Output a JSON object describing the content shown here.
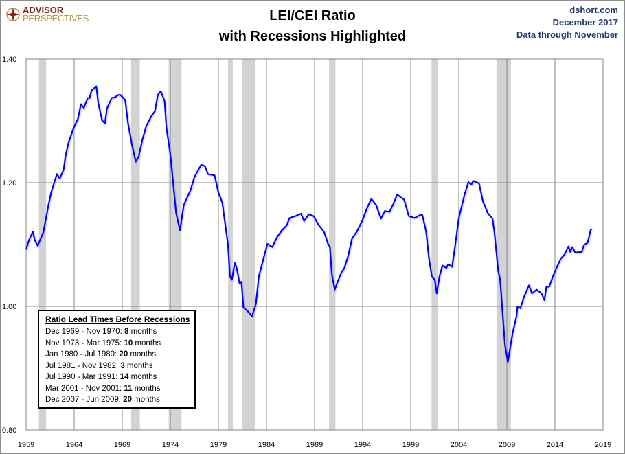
{
  "header": {
    "logo_line1": "ADVISOR",
    "logo_line2": "PERSPECTIVES",
    "title_line1": "LEI/CEI Ratio",
    "title_line2": "with Recessions Highlighted",
    "source": "dshort.com",
    "date": "December 2017",
    "data_through": "Data through November"
  },
  "legend_box": {
    "title": "Ratio Lead Times Before Recessions",
    "items": [
      {
        "range": "Dec 1969 - Nov 1970: ",
        "value": "8",
        "unit": " months"
      },
      {
        "range": "Nov 1973 - Mar 1975: ",
        "value": "10",
        "unit": " months"
      },
      {
        "range": "Jan 1980 - Jul 1980: ",
        "value": "20",
        "unit": " months"
      },
      {
        "range": "Jul 1981 - Nov 1982: ",
        "value": "3",
        "unit": " months"
      },
      {
        "range": "Jul 1990 - Mar 1991: ",
        "value": "14",
        "unit": " months"
      },
      {
        "range": "Mar 2001 - Nov 2001: ",
        "value": "11",
        "unit": " months"
      },
      {
        "range": "Dec 2007 - Jun 2009: ",
        "value": "20",
        "unit": " months"
      }
    ]
  },
  "chart_data": {
    "type": "line",
    "title": "LEI/CEI Ratio with Recessions Highlighted",
    "xlim": [
      1959,
      2019
    ],
    "ylim": [
      0.8,
      1.4
    ],
    "xticks": [
      "1959",
      "1964",
      "1969",
      "1974",
      "1979",
      "1984",
      "1989",
      "1994",
      "1999",
      "2004",
      "2009",
      "2014",
      "2019"
    ],
    "yticks": [
      "0.80",
      "1.00",
      "1.20",
      "1.40"
    ],
    "grid": true,
    "line_color": "#0000ff",
    "recession_color": "#d3d3d3",
    "recessions": [
      [
        1960.33,
        1961.08
      ],
      [
        1969.92,
        1970.83
      ],
      [
        1973.83,
        1975.17
      ],
      [
        1980.0,
        1980.5
      ],
      [
        1981.5,
        1982.83
      ],
      [
        1990.5,
        1991.17
      ],
      [
        2001.17,
        2001.83
      ],
      [
        2007.92,
        2009.42
      ]
    ],
    "series": [
      {
        "points": [
          [
            1959.0,
            1.092
          ],
          [
            1959.3,
            1.107
          ],
          [
            1959.7,
            1.121
          ],
          [
            1959.9,
            1.107
          ],
          [
            1960.2,
            1.098
          ],
          [
            1960.8,
            1.12
          ],
          [
            1961.3,
            1.162
          ],
          [
            1961.6,
            1.184
          ],
          [
            1962.0,
            1.204
          ],
          [
            1962.2,
            1.214
          ],
          [
            1962.5,
            1.207
          ],
          [
            1962.9,
            1.221
          ],
          [
            1963.1,
            1.243
          ],
          [
            1963.4,
            1.264
          ],
          [
            1963.9,
            1.287
          ],
          [
            1964.4,
            1.304
          ],
          [
            1964.7,
            1.327
          ],
          [
            1965.0,
            1.321
          ],
          [
            1965.4,
            1.337
          ],
          [
            1965.6,
            1.337
          ],
          [
            1965.8,
            1.349
          ],
          [
            1966.3,
            1.356
          ],
          [
            1966.5,
            1.329
          ],
          [
            1966.9,
            1.301
          ],
          [
            1967.2,
            1.296
          ],
          [
            1967.4,
            1.32
          ],
          [
            1967.9,
            1.337
          ],
          [
            1968.2,
            1.338
          ],
          [
            1968.6,
            1.342
          ],
          [
            1968.8,
            1.342
          ],
          [
            1969.3,
            1.334
          ],
          [
            1969.6,
            1.296
          ],
          [
            1970.0,
            1.262
          ],
          [
            1970.4,
            1.234
          ],
          [
            1970.7,
            1.242
          ],
          [
            1971.1,
            1.27
          ],
          [
            1971.5,
            1.292
          ],
          [
            1972.0,
            1.307
          ],
          [
            1972.4,
            1.316
          ],
          [
            1972.7,
            1.342
          ],
          [
            1973.0,
            1.348
          ],
          [
            1973.4,
            1.332
          ],
          [
            1973.6,
            1.288
          ],
          [
            1974.0,
            1.246
          ],
          [
            1974.6,
            1.151
          ],
          [
            1975.0,
            1.123
          ],
          [
            1975.4,
            1.164
          ],
          [
            1976.1,
            1.188
          ],
          [
            1976.5,
            1.209
          ],
          [
            1977.2,
            1.229
          ],
          [
            1977.6,
            1.227
          ],
          [
            1977.9,
            1.214
          ],
          [
            1978.6,
            1.212
          ],
          [
            1979.0,
            1.184
          ],
          [
            1979.4,
            1.168
          ],
          [
            1980.0,
            1.099
          ],
          [
            1980.2,
            1.048
          ],
          [
            1980.4,
            1.043
          ],
          [
            1980.7,
            1.07
          ],
          [
            1980.9,
            1.062
          ],
          [
            1981.2,
            1.037
          ],
          [
            1981.4,
            1.04
          ],
          [
            1981.6,
            0.998
          ],
          [
            1982.0,
            0.993
          ],
          [
            1982.5,
            0.984
          ],
          [
            1982.9,
            1.004
          ],
          [
            1983.2,
            1.048
          ],
          [
            1983.8,
            1.084
          ],
          [
            1984.1,
            1.101
          ],
          [
            1984.6,
            1.096
          ],
          [
            1985.1,
            1.112
          ],
          [
            1985.6,
            1.123
          ],
          [
            1986.1,
            1.131
          ],
          [
            1986.4,
            1.143
          ],
          [
            1987.0,
            1.146
          ],
          [
            1987.6,
            1.15
          ],
          [
            1987.9,
            1.138
          ],
          [
            1988.4,
            1.149
          ],
          [
            1988.9,
            1.146
          ],
          [
            1989.4,
            1.132
          ],
          [
            1990.0,
            1.12
          ],
          [
            1990.4,
            1.101
          ],
          [
            1990.6,
            1.096
          ],
          [
            1990.8,
            1.051
          ],
          [
            1991.1,
            1.027
          ],
          [
            1991.4,
            1.04
          ],
          [
            1991.8,
            1.055
          ],
          [
            1992.1,
            1.062
          ],
          [
            1992.5,
            1.082
          ],
          [
            1992.9,
            1.11
          ],
          [
            1993.4,
            1.121
          ],
          [
            1994.0,
            1.14
          ],
          [
            1994.4,
            1.157
          ],
          [
            1994.9,
            1.174
          ],
          [
            1995.4,
            1.164
          ],
          [
            1995.9,
            1.142
          ],
          [
            1996.3,
            1.154
          ],
          [
            1996.8,
            1.153
          ],
          [
            1997.2,
            1.166
          ],
          [
            1997.6,
            1.181
          ],
          [
            1997.9,
            1.177
          ],
          [
            1998.3,
            1.173
          ],
          [
            1998.8,
            1.146
          ],
          [
            1999.4,
            1.143
          ],
          [
            2000.0,
            1.148
          ],
          [
            2000.2,
            1.148
          ],
          [
            2000.6,
            1.121
          ],
          [
            2000.9,
            1.077
          ],
          [
            2001.2,
            1.048
          ],
          [
            2001.5,
            1.043
          ],
          [
            2001.7,
            1.021
          ],
          [
            2002.0,
            1.049
          ],
          [
            2002.3,
            1.066
          ],
          [
            2002.7,
            1.062
          ],
          [
            2002.9,
            1.068
          ],
          [
            2003.3,
            1.064
          ],
          [
            2003.6,
            1.096
          ],
          [
            2004.0,
            1.143
          ],
          [
            2004.6,
            1.181
          ],
          [
            2005.0,
            1.201
          ],
          [
            2005.3,
            1.197
          ],
          [
            2005.5,
            1.203
          ],
          [
            2006.1,
            1.199
          ],
          [
            2006.5,
            1.17
          ],
          [
            2007.0,
            1.151
          ],
          [
            2007.5,
            1.142
          ],
          [
            2007.7,
            1.12
          ],
          [
            2008.1,
            1.057
          ],
          [
            2008.3,
            1.043
          ],
          [
            2008.8,
            0.937
          ],
          [
            2009.1,
            0.91
          ],
          [
            2009.6,
            0.957
          ],
          [
            2010.0,
            0.984
          ],
          [
            2010.1,
            1.0
          ],
          [
            2010.4,
            0.997
          ],
          [
            2010.8,
            1.016
          ],
          [
            2011.3,
            1.034
          ],
          [
            2011.6,
            1.021
          ],
          [
            2012.1,
            1.027
          ],
          [
            2012.6,
            1.021
          ],
          [
            2012.9,
            1.01
          ],
          [
            2013.1,
            1.031
          ],
          [
            2013.4,
            1.032
          ],
          [
            2013.8,
            1.049
          ],
          [
            2014.1,
            1.06
          ],
          [
            2014.6,
            1.077
          ],
          [
            2015.0,
            1.084
          ],
          [
            2015.4,
            1.097
          ],
          [
            2015.6,
            1.088
          ],
          [
            2015.8,
            1.096
          ],
          [
            2016.1,
            1.087
          ],
          [
            2016.8,
            1.088
          ],
          [
            2017.0,
            1.099
          ],
          [
            2017.4,
            1.103
          ],
          [
            2017.7,
            1.123
          ],
          [
            2017.8,
            1.125
          ]
        ]
      }
    ]
  }
}
